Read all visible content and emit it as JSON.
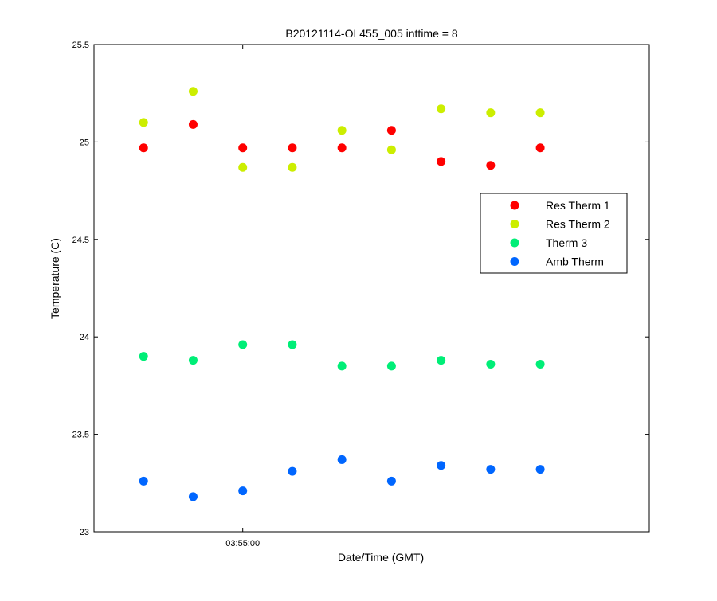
{
  "chart_data": {
    "type": "scatter",
    "title": "B20121114-OL455_005 inttime = 8",
    "xlabel": "Date/Time (GMT)",
    "ylabel": "Temperature (C)",
    "ylim": [
      23,
      25.5
    ],
    "y_ticks": [
      "23",
      "23.5",
      "24",
      "24.5",
      "25",
      "25.5"
    ],
    "x_ticks": [
      {
        "label": "03:55:00",
        "index": 3
      }
    ],
    "x_index_range": [
      0,
      11.2
    ],
    "grid": false,
    "legend_position": "right",
    "series": [
      {
        "name": "Res Therm 1",
        "color": "#ff0000",
        "values": [
          24.97,
          25.09,
          24.97,
          24.97,
          24.97,
          25.06,
          24.9,
          24.88,
          24.97
        ]
      },
      {
        "name": "Res Therm 2",
        "color": "#ccee00",
        "values": [
          25.1,
          25.26,
          24.87,
          24.87,
          25.06,
          24.96,
          25.17,
          25.15,
          25.15
        ]
      },
      {
        "name": "Therm 3",
        "color": "#00ee77",
        "values": [
          23.9,
          23.88,
          23.96,
          23.96,
          23.85,
          23.85,
          23.88,
          23.86,
          23.86
        ]
      },
      {
        "name": "Amb Therm",
        "color": "#0066ff",
        "values": [
          23.26,
          23.18,
          23.21,
          23.31,
          23.37,
          23.26,
          23.34,
          23.32,
          23.32
        ]
      }
    ]
  }
}
